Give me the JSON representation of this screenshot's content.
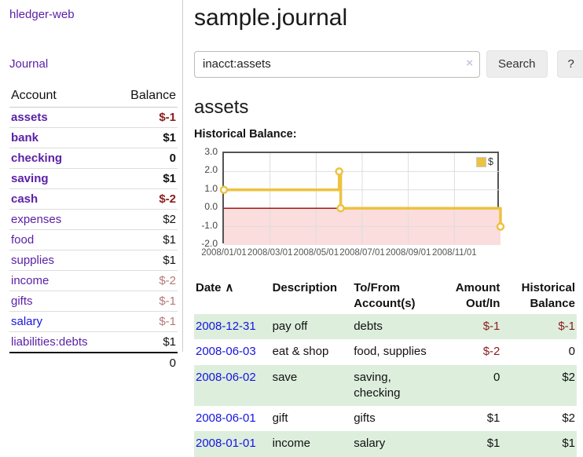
{
  "colors": {
    "purple": "#5b21a6",
    "blue": "#1515dd",
    "neg_strong": "#8b1c1c",
    "neg_muted": "#b87878",
    "stripe": "#ddeedd",
    "chart_line": "#EDC240",
    "chart_grid": "#dddddd",
    "chart_border": "#545454"
  },
  "sidebar": {
    "app_title": "hledger-web",
    "nav": {
      "journal": "Journal"
    },
    "accounts_table": {
      "headers": {
        "account": "Account",
        "balance": "Balance"
      },
      "rows": [
        {
          "name": "assets",
          "balance": "$-1",
          "indent": 1,
          "bold": true,
          "balance_style": "neg-strong",
          "link_color": "purple"
        },
        {
          "name": "bank",
          "balance": "$1",
          "indent": 2,
          "bold": true,
          "balance_style": "pos",
          "link_color": "purple"
        },
        {
          "name": "checking",
          "balance": "0",
          "indent": 3,
          "bold": true,
          "balance_style": "pos",
          "link_color": "purple"
        },
        {
          "name": "saving",
          "balance": "$1",
          "indent": 3,
          "bold": true,
          "balance_style": "pos",
          "link_color": "purple"
        },
        {
          "name": "cash",
          "balance": "$-2",
          "indent": 2,
          "bold": true,
          "balance_style": "neg-strong",
          "link_color": "purple"
        },
        {
          "name": "expenses",
          "balance": "$2",
          "indent": 1,
          "bold": false,
          "balance_style": "pos",
          "link_color": "purple"
        },
        {
          "name": "food",
          "balance": "$1",
          "indent": 2,
          "bold": false,
          "balance_style": "pos",
          "link_color": "purple"
        },
        {
          "name": "supplies",
          "balance": "$1",
          "indent": 2,
          "bold": false,
          "balance_style": "pos",
          "link_color": "purple"
        },
        {
          "name": "income",
          "balance": "$-2",
          "indent": 1,
          "bold": false,
          "balance_style": "neg-muted",
          "link_color": "purple"
        },
        {
          "name": "gifts",
          "balance": "$-1",
          "indent": 2,
          "bold": false,
          "balance_style": "neg-muted",
          "link_color": "purple"
        },
        {
          "name": "salary",
          "balance": "$-1",
          "indent": 2,
          "bold": false,
          "balance_style": "neg-muted",
          "link_color": "blue"
        },
        {
          "name": "liabilities:debts",
          "balance": "$1",
          "indent": 1,
          "bold": false,
          "balance_style": "pos",
          "link_color": "purple"
        }
      ],
      "total": "0"
    }
  },
  "main": {
    "title": "sample.journal",
    "search": {
      "value": "inacct:assets",
      "clear_icon": "×",
      "button_label": "Search",
      "help_button_label": "?"
    },
    "account_heading": "assets",
    "chart_label": "Historical Balance:"
  },
  "chart_data": {
    "type": "line",
    "title": "Historical Balance",
    "step": true,
    "series": [
      {
        "name": "$",
        "color": "#EDC240",
        "points": [
          {
            "date": "2008-01-01",
            "value": 1
          },
          {
            "date": "2008-06-01",
            "value": 2
          },
          {
            "date": "2008-06-03",
            "value": 0
          },
          {
            "date": "2008-12-31",
            "value": -1
          }
        ]
      }
    ],
    "x_ticks": [
      "2008/01/01",
      "2008/03/01",
      "2008/05/01",
      "2008/07/01",
      "2008/09/01",
      "2008/11/01"
    ],
    "x_tick_month_offsets": [
      0,
      2,
      4,
      6,
      8,
      10
    ],
    "x_range_months": [
      0,
      12
    ],
    "y_ticks": [
      "3.0",
      "2.0",
      "1.0",
      "0.0",
      "-1.0",
      "-2.0"
    ],
    "ylim": [
      -2,
      3
    ],
    "grid": true,
    "negative_region_fill": "#fbdddd",
    "zero_line_color": "#a01818",
    "legend": {
      "label": "$",
      "position": "top-right"
    }
  },
  "table": {
    "sort_icon": "∧",
    "headers": [
      {
        "label": "Date",
        "sorted": true,
        "align": "left"
      },
      {
        "label": "Description",
        "align": "left"
      },
      {
        "label": "To/From Account(s)",
        "align": "left"
      },
      {
        "label": "Amount Out/In",
        "align": "right"
      },
      {
        "label": "Historical Balance",
        "align": "right"
      }
    ],
    "rows": [
      {
        "date": "2008-12-31",
        "description": "pay off",
        "accounts": "debts",
        "amount": "$-1",
        "amount_neg": true,
        "balance": "$-1",
        "balance_neg": true,
        "shaded": true
      },
      {
        "date": "2008-06-03",
        "description": "eat & shop",
        "accounts": "food, supplies",
        "amount": "$-2",
        "amount_neg": true,
        "balance": "0",
        "balance_neg": false,
        "shaded": false
      },
      {
        "date": "2008-06-02",
        "description": "save",
        "accounts": "saving, checking",
        "amount": "0",
        "amount_neg": false,
        "balance": "$2",
        "balance_neg": false,
        "shaded": true
      },
      {
        "date": "2008-06-01",
        "description": "gift",
        "accounts": "gifts",
        "amount": "$1",
        "amount_neg": false,
        "balance": "$2",
        "balance_neg": false,
        "shaded": false
      },
      {
        "date": "2008-01-01",
        "description": "income",
        "accounts": "salary",
        "amount": "$1",
        "amount_neg": false,
        "balance": "$1",
        "balance_neg": false,
        "shaded": true
      }
    ]
  }
}
